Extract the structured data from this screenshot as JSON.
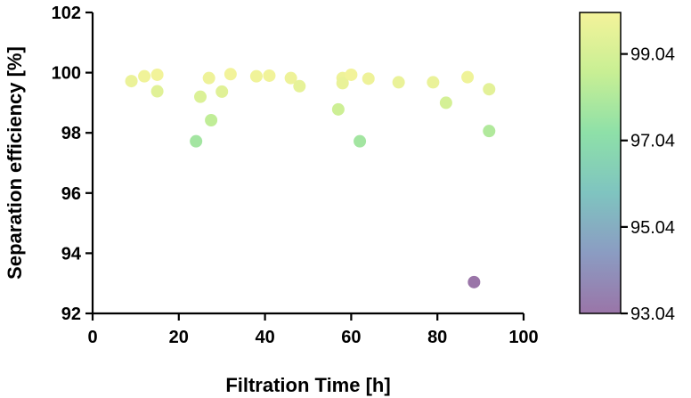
{
  "chart_data": {
    "type": "scatter",
    "xlabel": "Filtration Time [h]",
    "ylabel": "Separation efficiency [%]",
    "xlim": [
      0,
      100
    ],
    "ylim": [
      92,
      102
    ],
    "xticks": [
      0,
      20,
      40,
      60,
      80,
      100
    ],
    "yticks": [
      92,
      94,
      96,
      98,
      100,
      102
    ],
    "grid": false,
    "colorbar": {
      "range": [
        93.04,
        100.0
      ],
      "ticks": [
        99.04,
        97.04,
        95.04,
        93.04
      ],
      "colormap": "viridis-pastel",
      "colors": [
        "#9a75a8",
        "#8b9cc2",
        "#7fc4c0",
        "#8ee0a8",
        "#c8ef94",
        "#f4f39a"
      ]
    },
    "points": [
      {
        "x": 9,
        "y": 99.72
      },
      {
        "x": 12,
        "y": 99.88
      },
      {
        "x": 15,
        "y": 99.93
      },
      {
        "x": 15,
        "y": 99.38
      },
      {
        "x": 24,
        "y": 97.72
      },
      {
        "x": 25,
        "y": 99.2
      },
      {
        "x": 27,
        "y": 99.82
      },
      {
        "x": 27.5,
        "y": 98.42
      },
      {
        "x": 30,
        "y": 99.37
      },
      {
        "x": 32,
        "y": 99.95
      },
      {
        "x": 38,
        "y": 99.88
      },
      {
        "x": 41,
        "y": 99.9
      },
      {
        "x": 46,
        "y": 99.82
      },
      {
        "x": 48,
        "y": 99.55
      },
      {
        "x": 57,
        "y": 98.78
      },
      {
        "x": 58,
        "y": 99.82
      },
      {
        "x": 58,
        "y": 99.65
      },
      {
        "x": 60,
        "y": 99.93
      },
      {
        "x": 62,
        "y": 97.72
      },
      {
        "x": 64,
        "y": 99.8
      },
      {
        "x": 71,
        "y": 99.68
      },
      {
        "x": 79,
        "y": 99.68
      },
      {
        "x": 82,
        "y": 99.0
      },
      {
        "x": 87,
        "y": 99.85
      },
      {
        "x": 88.5,
        "y": 93.04
      },
      {
        "x": 92,
        "y": 99.45
      },
      {
        "x": 92,
        "y": 98.06
      }
    ]
  }
}
